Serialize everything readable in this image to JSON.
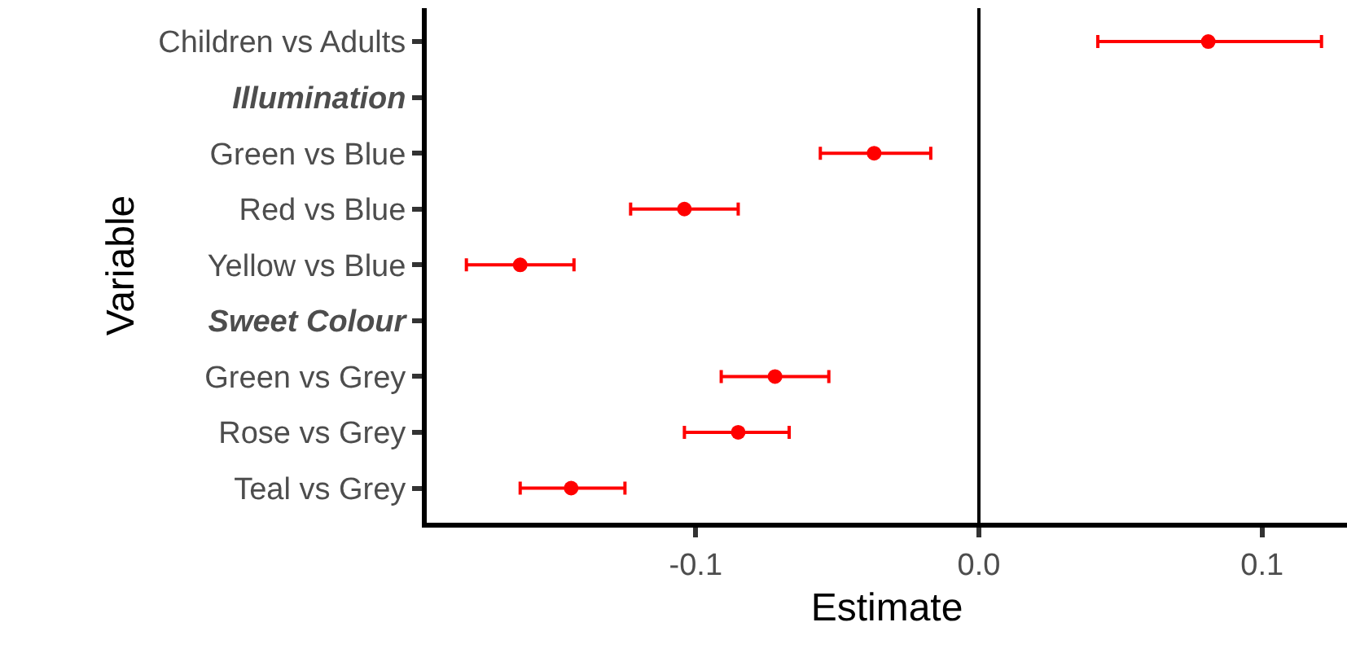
{
  "chart_data": {
    "type": "scatter",
    "xlabel": "Estimate",
    "ylabel": "Variable",
    "categories": [
      "Children vs Adults",
      "Illumination",
      "Green vs Blue",
      "Red vs Blue",
      "Yellow vs Blue",
      "Sweet Colour",
      "Green vs Grey",
      "Rose vs Grey",
      "Teal vs Grey"
    ],
    "orientation": "horizontal",
    "series": [
      {
        "color": "#ff0000",
        "values": [
          0.081,
          null,
          -0.037,
          -0.104,
          -0.162,
          null,
          -0.072,
          -0.085,
          -0.144
        ],
        "errors": [
          [
            0.042,
            0.121
          ],
          null,
          [
            -0.056,
            -0.017
          ],
          [
            -0.123,
            -0.085
          ],
          [
            -0.181,
            -0.143
          ],
          null,
          [
            -0.091,
            -0.053
          ],
          [
            -0.104,
            -0.067
          ],
          [
            -0.162,
            -0.125
          ]
        ]
      }
    ],
    "xlim": [
      -0.195,
      0.13
    ],
    "xticks": [
      -0.1,
      {
        "value": 0,
        "label": "0.0"
      },
      0.1
    ],
    "ref_lines": [
      {
        "axis": "x",
        "value": 0,
        "color": "#000000"
      }
    ],
    "grid": false,
    "marker": "circle"
  }
}
